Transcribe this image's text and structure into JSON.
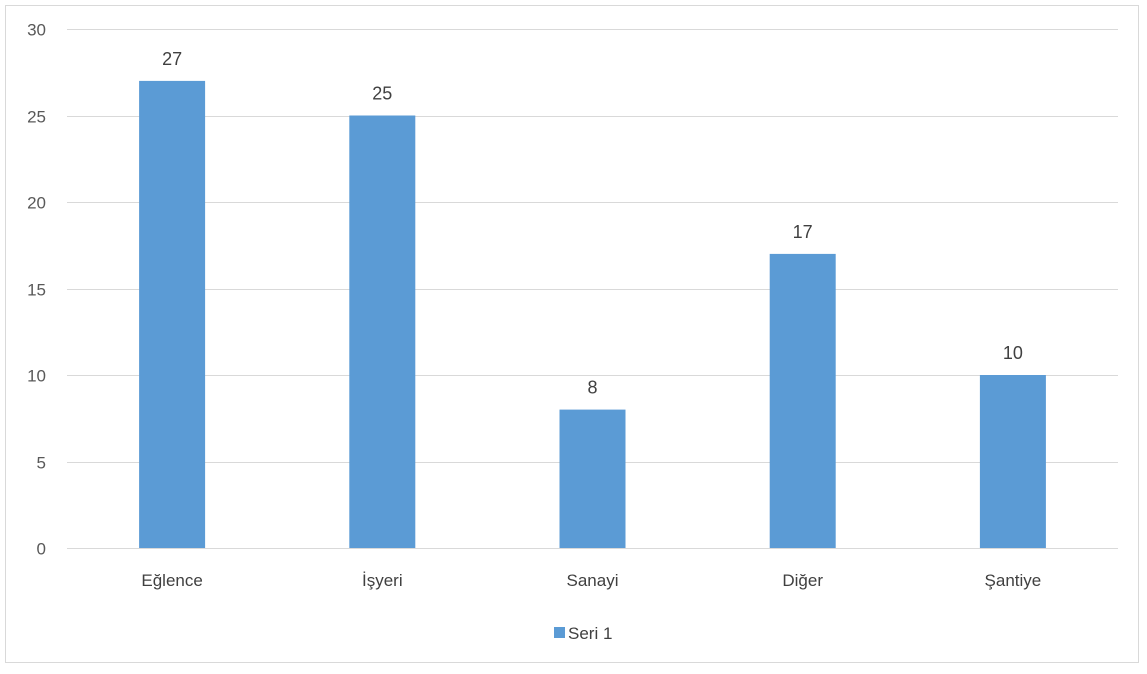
{
  "chart_data": {
    "type": "bar",
    "categories": [
      "Eğlence",
      "İşyeri",
      "Sanayi",
      "Diğer",
      "Şantiye"
    ],
    "series": [
      {
        "name": "Seri 1",
        "values": [
          27,
          25,
          8,
          17,
          10
        ],
        "color": "#5b9bd5"
      }
    ],
    "ylim": [
      0,
      30
    ],
    "yticks": [
      0,
      5,
      10,
      15,
      20,
      25,
      30
    ],
    "grid": true,
    "data_labels": true,
    "legend_position": "bottom",
    "colors": {
      "bar": "#5b9bd5",
      "grid": "#d9d9d9",
      "text": "#595959"
    }
  }
}
